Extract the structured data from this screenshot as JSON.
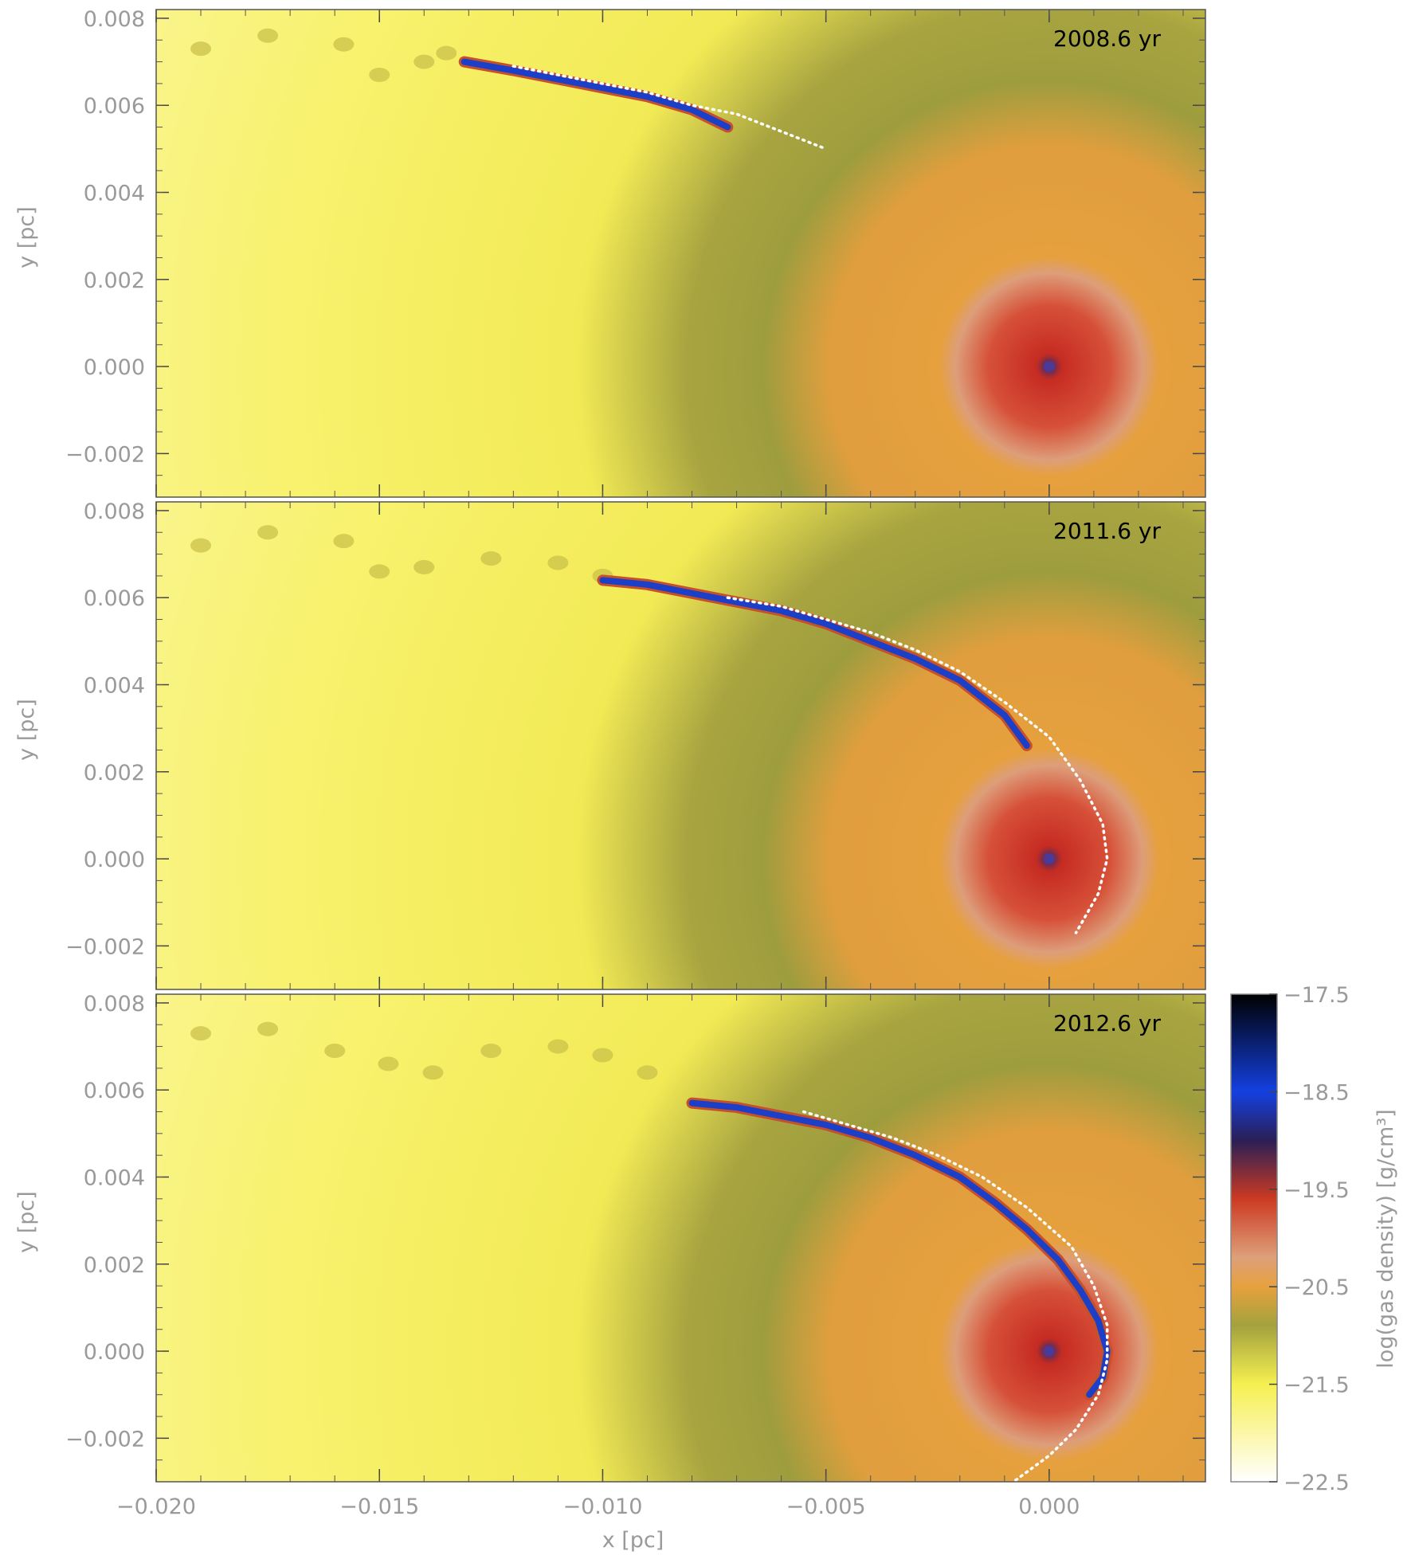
{
  "chart_data": {
    "type": "heatmap",
    "panels": [
      {
        "time_label": "2008.6 yr",
        "orbit_x": [
          -0.012,
          -0.011,
          -0.01,
          -0.009,
          -0.008,
          -0.007,
          -0.006,
          -0.005
        ],
        "orbit_y": [
          0.0069,
          0.0067,
          0.0065,
          0.0063,
          0.006,
          0.0058,
          0.0054,
          0.005
        ],
        "cloud_x": [
          -0.0131,
          -0.012,
          -0.011,
          -0.01,
          -0.009,
          -0.008,
          -0.0072
        ],
        "cloud_y": [
          0.007,
          0.0068,
          0.0066,
          0.0064,
          0.0062,
          0.0059,
          0.0055
        ],
        "wisps_x": [
          -0.019,
          -0.0175,
          -0.0158,
          -0.015,
          -0.014,
          -0.0135
        ],
        "wisps_y": [
          0.0073,
          0.0076,
          0.0074,
          0.0067,
          0.007,
          0.0072
        ]
      },
      {
        "time_label": "2011.6 yr",
        "orbit_x": [
          -0.0072,
          -0.006,
          -0.005,
          -0.004,
          -0.003,
          -0.002,
          -0.001,
          0.0,
          0.0007,
          0.0012,
          0.0013,
          0.0011,
          0.0006
        ],
        "orbit_y": [
          0.006,
          0.0058,
          0.0055,
          0.0052,
          0.0048,
          0.0043,
          0.0036,
          0.0028,
          0.0018,
          0.0008,
          0.0,
          -0.0008,
          -0.0017
        ],
        "cloud_x": [
          -0.01,
          -0.009,
          -0.008,
          -0.007,
          -0.006,
          -0.005,
          -0.004,
          -0.003,
          -0.002,
          -0.001,
          -0.0005
        ],
        "cloud_y": [
          0.0064,
          0.0063,
          0.0061,
          0.0059,
          0.0057,
          0.0054,
          0.005,
          0.0046,
          0.0041,
          0.0033,
          0.0026
        ],
        "wisps_x": [
          -0.019,
          -0.0175,
          -0.0158,
          -0.015,
          -0.014,
          -0.0125,
          -0.011,
          -0.01
        ],
        "wisps_y": [
          0.0072,
          0.0075,
          0.0073,
          0.0066,
          0.0067,
          0.0069,
          0.0068,
          0.0065
        ]
      },
      {
        "time_label": "2012.6 yr",
        "orbit_x": [
          -0.0055,
          -0.0045,
          -0.0035,
          -0.0025,
          -0.0015,
          -0.0005,
          0.0005,
          0.001,
          0.0013,
          0.0013,
          0.0011,
          0.0006,
          0.0,
          -0.0008
        ],
        "orbit_y": [
          0.0055,
          0.0052,
          0.0049,
          0.0045,
          0.004,
          0.0033,
          0.0024,
          0.0015,
          0.0006,
          -0.0002,
          -0.001,
          -0.0018,
          -0.0024,
          -0.003
        ],
        "cloud_x": [
          -0.008,
          -0.007,
          -0.006,
          -0.005,
          -0.004,
          -0.003,
          -0.002,
          -0.0012,
          -0.0005,
          0.0002,
          0.0007,
          0.0011,
          0.0013,
          0.0012,
          0.0009
        ],
        "cloud_y": [
          0.0057,
          0.0056,
          0.0054,
          0.0052,
          0.0049,
          0.0045,
          0.004,
          0.0034,
          0.0028,
          0.0021,
          0.0014,
          0.0007,
          0.0,
          -0.0006,
          -0.001
        ],
        "wisps_x": [
          -0.019,
          -0.0175,
          -0.016,
          -0.0148,
          -0.0138,
          -0.0125,
          -0.011,
          -0.01,
          -0.009
        ],
        "wisps_y": [
          0.0073,
          0.0074,
          0.0069,
          0.0066,
          0.0064,
          0.0069,
          0.007,
          0.0068,
          0.0064
        ]
      }
    ],
    "xlabel": "x [pc]",
    "ylabel": "y [pc]",
    "xlim": [
      -0.02,
      0.0035
    ],
    "ylim": [
      -0.003,
      0.0082
    ],
    "x_ticks": [
      -0.02,
      -0.015,
      -0.01,
      -0.005,
      0.0
    ],
    "x_tick_labels": [
      "−0.020",
      "−0.015",
      "−0.010",
      "−0.005",
      "0.000"
    ],
    "y_ticks": [
      -0.002,
      0.0,
      0.002,
      0.004,
      0.006,
      0.008
    ],
    "y_tick_labels": [
      "−0.002",
      "0.000",
      "0.002",
      "0.004",
      "0.006",
      "0.008"
    ],
    "colorbar": {
      "label": "log(gas density) [g/cm³]",
      "range": [
        -22.5,
        -17.5
      ],
      "ticks": [
        -22.5,
        -21.5,
        -20.5,
        -19.5,
        -18.5,
        -17.5
      ],
      "tick_labels": [
        "−22.5",
        "−21.5",
        "−20.5",
        "−19.5",
        "−18.5",
        "−17.5"
      ],
      "colors": [
        "#ffffff",
        "#fbf7a8",
        "#f5f050",
        "#a3a23e",
        "#e6a13e",
        "#dda07a",
        "#cc3a22",
        "#2a1f56",
        "#1440e0",
        "#000000"
      ],
      "stops": [
        0.0,
        0.1,
        0.2,
        0.32,
        0.4,
        0.46,
        0.58,
        0.7,
        0.8,
        1.0
      ]
    },
    "background_density_colors": {
      "outer": "#f6ef60",
      "green_shell": "#9e9d3e",
      "orange_core": "#e6a13e",
      "center_red": "#d43d22",
      "cloud_blue": "#1c3fc8",
      "cloud_edge": "#c6502a",
      "orbit": "#ffffff"
    }
  }
}
